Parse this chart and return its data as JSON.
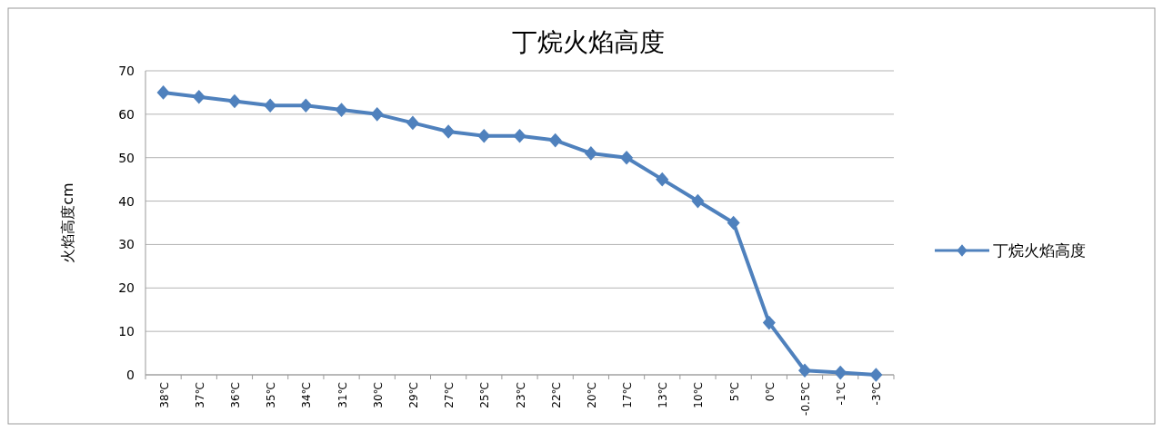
{
  "chart_data": {
    "type": "line",
    "title": "丁烷火焰高度",
    "ylabel": "火焰高度cm",
    "categories": [
      "38℃",
      "37℃",
      "36℃",
      "35℃",
      "34℃",
      "31℃",
      "30℃",
      "29℃",
      "27℃",
      "25℃",
      "23℃",
      "22℃",
      "20℃",
      "17℃",
      "13℃",
      "10℃",
      "5℃",
      "0℃",
      "-0.5℃",
      "-1℃",
      "-3℃"
    ],
    "series": [
      {
        "name": "丁烷火焰高度",
        "color": "#4f81bd",
        "values": [
          65,
          64,
          63,
          62,
          62,
          61,
          60,
          58,
          56,
          55,
          55,
          54,
          51,
          50,
          45,
          40,
          35,
          12,
          1,
          0.5,
          0
        ]
      }
    ],
    "ylim": [
      0,
      70
    ],
    "yticks": [
      0,
      10,
      20,
      30,
      40,
      50,
      60,
      70
    ],
    "grid": "y",
    "legend": "right",
    "marker": "diamond"
  }
}
